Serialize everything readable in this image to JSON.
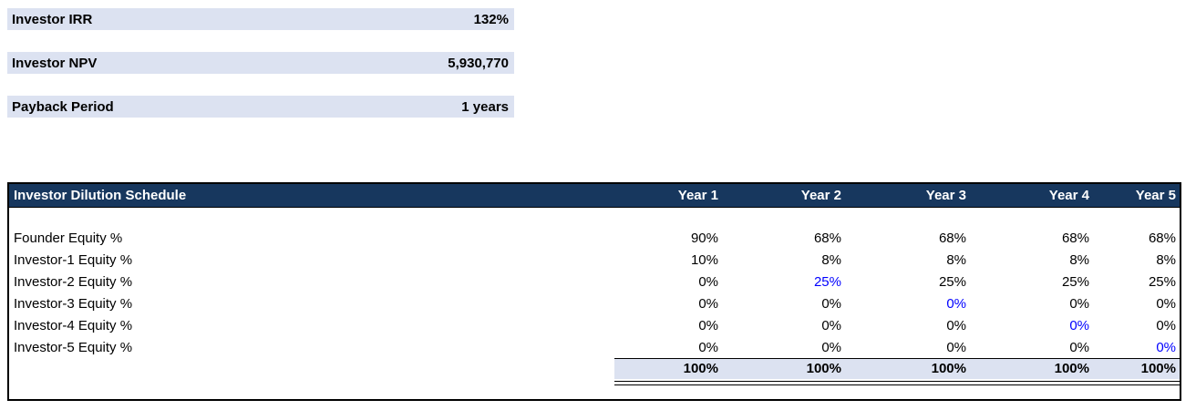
{
  "metrics": [
    {
      "label": "Investor IRR",
      "value": "132%"
    },
    {
      "label": "Investor NPV",
      "value": "5,930,770"
    },
    {
      "label": "Payback Period",
      "value": "1 years"
    }
  ],
  "dilution": {
    "title": "Investor Dilution Schedule",
    "years": [
      "Year 1",
      "Year 2",
      "Year 3",
      "Year 4",
      "Year 5"
    ],
    "rows": [
      {
        "label": "Founder Equity %",
        "values": [
          "90%",
          "68%",
          "68%",
          "68%",
          "68%"
        ]
      },
      {
        "label": "Investor-1 Equity %",
        "values": [
          "10%",
          "8%",
          "8%",
          "8%",
          "8%"
        ]
      },
      {
        "label": "Investor-2 Equity %",
        "values": [
          "0%",
          "25%",
          "25%",
          "25%",
          "25%"
        ]
      },
      {
        "label": "Investor-3 Equity %",
        "values": [
          "0%",
          "0%",
          "0%",
          "0%",
          "0%"
        ]
      },
      {
        "label": "Investor-4 Equity %",
        "values": [
          "0%",
          "0%",
          "0%",
          "0%",
          "0%"
        ]
      },
      {
        "label": "Investor-5 Equity %",
        "values": [
          "0%",
          "0%",
          "0%",
          "0%",
          "0%"
        ]
      }
    ],
    "totals": [
      "100%",
      "100%",
      "100%",
      "100%",
      "100%"
    ]
  },
  "colors": {
    "header_bg": "#17375E",
    "band_bg": "#DCE2F1",
    "highlight_value": "#0000FF"
  }
}
